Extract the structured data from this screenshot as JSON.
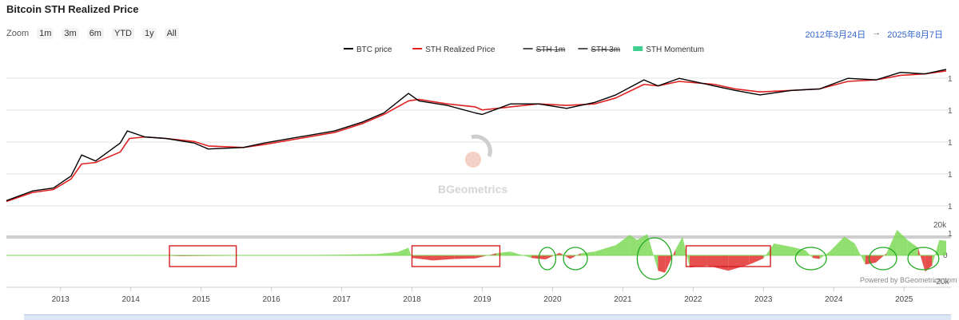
{
  "title": "Bitcoin STH Realized Price",
  "zoom": {
    "label": "Zoom",
    "buttons": [
      "1m",
      "3m",
      "6m",
      "YTD",
      "1y",
      "All"
    ]
  },
  "range": {
    "from": "2012年3月24日",
    "arrow": "→",
    "to": "2025年8月7日"
  },
  "watermark": "BGeometrics",
  "credit": "Powered by BGeometrics.com",
  "colors": {
    "btc": "#000000",
    "sth": "#e02020",
    "momentum_pos": "#7ed957",
    "momentum_neg": "#e33030",
    "highlight": "#d42020",
    "circle": "#22aa22"
  },
  "chart_data": {
    "type": "line",
    "x_axis_labels": [
      "2013",
      "2014",
      "2015",
      "2016",
      "2017",
      "2018",
      "2019",
      "2020",
      "2021",
      "2022",
      "2023",
      "2024",
      "2025"
    ],
    "xlim": [
      "2012-03-24",
      "2025-08-07"
    ],
    "legend": [
      {
        "name": "BTC price",
        "style": "line",
        "color": "#000000"
      },
      {
        "name": "STH Realized Price",
        "style": "line",
        "color": "#e02020"
      },
      {
        "name": "STH 1m",
        "style": "line-struck",
        "color": "#555555"
      },
      {
        "name": "STH 3m",
        "style": "line-struck",
        "color": "#555555"
      },
      {
        "name": "STH Momentum",
        "style": "area",
        "color": "#3ecf8e"
      }
    ],
    "legend_position": "top",
    "upper_y_ticks": [
      "1",
      "1",
      "1",
      "1",
      "1",
      "1"
    ],
    "lower_y_ticks": [
      "20k",
      "0",
      "-20k"
    ],
    "btc_price_log": [
      [
        2012.23,
        0.68
      ],
      [
        2012.6,
        1.0
      ],
      [
        2012.9,
        1.1
      ],
      [
        2013.15,
        1.5
      ],
      [
        2013.3,
        2.2
      ],
      [
        2013.5,
        2.0
      ],
      [
        2013.85,
        2.6
      ],
      [
        2013.95,
        3.0
      ],
      [
        2014.2,
        2.8
      ],
      [
        2014.5,
        2.75
      ],
      [
        2014.9,
        2.6
      ],
      [
        2015.1,
        2.4
      ],
      [
        2015.6,
        2.45
      ],
      [
        2015.9,
        2.6
      ],
      [
        2016.4,
        2.8
      ],
      [
        2016.9,
        3.0
      ],
      [
        2017.3,
        3.3
      ],
      [
        2017.6,
        3.6
      ],
      [
        2017.95,
        4.25
      ],
      [
        2018.1,
        4.0
      ],
      [
        2018.5,
        3.85
      ],
      [
        2018.9,
        3.6
      ],
      [
        2019.0,
        3.55
      ],
      [
        2019.4,
        3.9
      ],
      [
        2019.8,
        3.9
      ],
      [
        2020.2,
        3.75
      ],
      [
        2020.6,
        3.95
      ],
      [
        2020.9,
        4.2
      ],
      [
        2021.3,
        4.7
      ],
      [
        2021.5,
        4.5
      ],
      [
        2021.8,
        4.75
      ],
      [
        2022.3,
        4.5
      ],
      [
        2022.6,
        4.35
      ],
      [
        2022.95,
        4.2
      ],
      [
        2023.4,
        4.35
      ],
      [
        2023.8,
        4.4
      ],
      [
        2024.2,
        4.75
      ],
      [
        2024.6,
        4.7
      ],
      [
        2024.95,
        4.95
      ],
      [
        2025.3,
        4.9
      ],
      [
        2025.6,
        5.05
      ]
    ],
    "sth_realized_price_log": [
      [
        2012.23,
        0.65
      ],
      [
        2012.6,
        0.95
      ],
      [
        2012.9,
        1.05
      ],
      [
        2013.15,
        1.4
      ],
      [
        2013.3,
        1.9
      ],
      [
        2013.5,
        1.95
      ],
      [
        2013.85,
        2.3
      ],
      [
        2013.98,
        2.75
      ],
      [
        2014.2,
        2.8
      ],
      [
        2014.5,
        2.75
      ],
      [
        2014.9,
        2.65
      ],
      [
        2015.1,
        2.5
      ],
      [
        2015.6,
        2.45
      ],
      [
        2015.9,
        2.55
      ],
      [
        2016.4,
        2.75
      ],
      [
        2016.9,
        2.95
      ],
      [
        2017.3,
        3.25
      ],
      [
        2017.6,
        3.55
      ],
      [
        2017.95,
        4.0
      ],
      [
        2018.1,
        4.05
      ],
      [
        2018.5,
        3.9
      ],
      [
        2018.9,
        3.8
      ],
      [
        2019.0,
        3.7
      ],
      [
        2019.4,
        3.8
      ],
      [
        2019.8,
        3.9
      ],
      [
        2020.2,
        3.85
      ],
      [
        2020.6,
        3.9
      ],
      [
        2020.9,
        4.1
      ],
      [
        2021.3,
        4.55
      ],
      [
        2021.5,
        4.5
      ],
      [
        2021.8,
        4.65
      ],
      [
        2022.3,
        4.55
      ],
      [
        2022.6,
        4.4
      ],
      [
        2022.95,
        4.3
      ],
      [
        2023.4,
        4.35
      ],
      [
        2023.8,
        4.4
      ],
      [
        2024.2,
        4.65
      ],
      [
        2024.6,
        4.7
      ],
      [
        2024.95,
        4.85
      ],
      [
        2025.3,
        4.9
      ],
      [
        2025.6,
        5.0
      ]
    ],
    "log_ylim": [
      0,
      5.5
    ],
    "sth_momentum": [
      [
        2012.23,
        0
      ],
      [
        2013.9,
        200
      ],
      [
        2014.1,
        600
      ],
      [
        2014.3,
        300
      ],
      [
        2014.5,
        -300
      ],
      [
        2014.7,
        -800
      ],
      [
        2015.0,
        -600
      ],
      [
        2015.4,
        -400
      ],
      [
        2015.7,
        -300
      ],
      [
        2016.0,
        300
      ],
      [
        2016.6,
        500
      ],
      [
        2017.0,
        800
      ],
      [
        2017.5,
        1500
      ],
      [
        2017.8,
        4000
      ],
      [
        2017.95,
        9000
      ],
      [
        2018.0,
        -2500
      ],
      [
        2018.3,
        -5000
      ],
      [
        2018.6,
        -3500
      ],
      [
        2018.9,
        -3000
      ],
      [
        2019.2,
        2500
      ],
      [
        2019.4,
        4500
      ],
      [
        2019.7,
        -2500
      ],
      [
        2019.9,
        -4000
      ],
      [
        2020.1,
        3000
      ],
      [
        2020.25,
        -3500
      ],
      [
        2020.4,
        2500
      ],
      [
        2020.6,
        4500
      ],
      [
        2020.9,
        12000
      ],
      [
        2021.1,
        24000
      ],
      [
        2021.2,
        18000
      ],
      [
        2021.35,
        25000
      ],
      [
        2021.5,
        -15000
      ],
      [
        2021.6,
        -17000
      ],
      [
        2021.75,
        7000
      ],
      [
        2021.85,
        22000
      ],
      [
        2021.95,
        -12000
      ],
      [
        2022.2,
        -10000
      ],
      [
        2022.5,
        -15000
      ],
      [
        2022.8,
        -9000
      ],
      [
        2023.0,
        -3000
      ],
      [
        2023.15,
        14000
      ],
      [
        2023.4,
        10000
      ],
      [
        2023.6,
        6000
      ],
      [
        2023.7,
        -2500
      ],
      [
        2023.8,
        -3500
      ],
      [
        2023.95,
        5000
      ],
      [
        2024.15,
        22000
      ],
      [
        2024.3,
        14000
      ],
      [
        2024.45,
        -9000
      ],
      [
        2024.6,
        -7000
      ],
      [
        2024.75,
        2500
      ],
      [
        2024.9,
        30000
      ],
      [
        2025.05,
        18000
      ],
      [
        2025.2,
        9000
      ],
      [
        2025.3,
        -16000
      ],
      [
        2025.4,
        -10000
      ],
      [
        2025.5,
        18000
      ],
      [
        2025.6,
        17000
      ]
    ],
    "momentum_ylim": [
      -25000,
      30000
    ],
    "highlight_boxes": [
      [
        2014.55,
        2015.5
      ],
      [
        2018.0,
        2019.25
      ],
      [
        2021.9,
        2023.1
      ]
    ],
    "highlight_circles": [
      [
        2019.85,
        2020.0
      ],
      [
        2020.2,
        2020.45
      ],
      [
        2021.25,
        2021.65
      ],
      [
        2023.5,
        2023.85
      ],
      [
        2024.55,
        2024.85
      ],
      [
        2025.1,
        2025.45
      ]
    ]
  }
}
